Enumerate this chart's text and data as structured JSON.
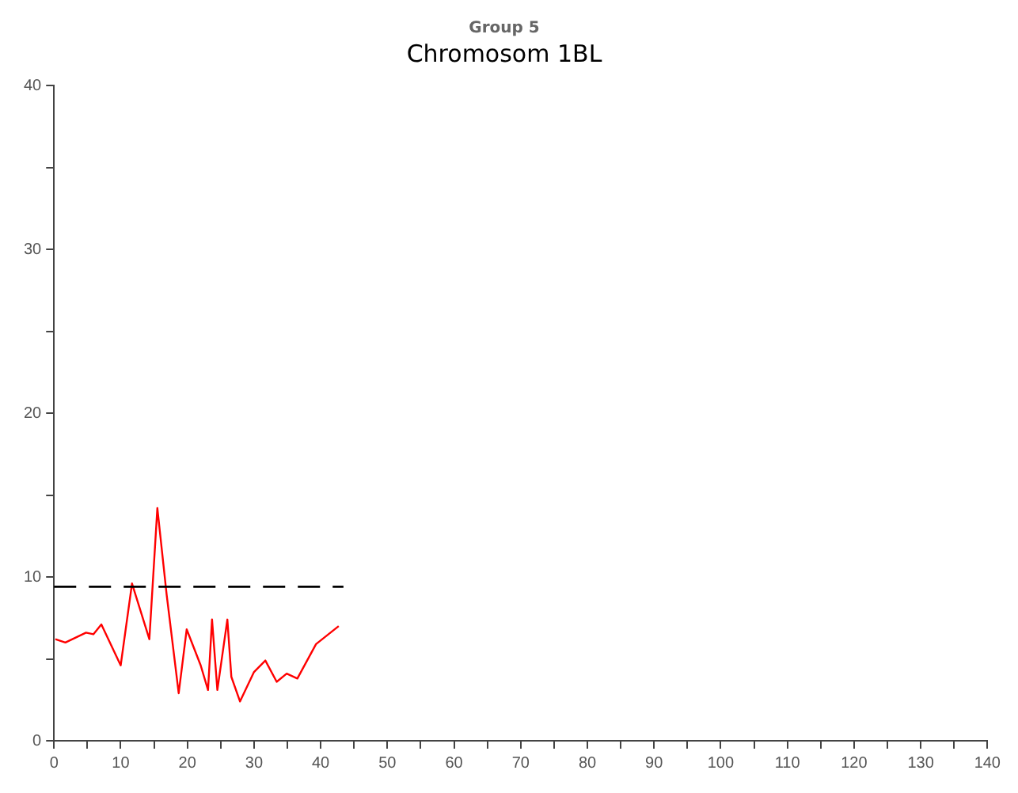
{
  "chart_data": {
    "type": "line",
    "title": "Group 5",
    "subtitle": "Chromosom 1BL",
    "x": [
      0.2,
      1.7,
      4.8,
      5.9,
      7.1,
      10,
      11.7,
      14.3,
      15.5,
      16.9,
      18.7,
      19.9,
      22,
      23.1,
      23.7,
      24.5,
      26,
      26.6,
      27.9,
      30,
      31.7,
      33.4,
      34.9,
      36.5,
      39.3,
      42.7
    ],
    "series": [
      {
        "color": "#ff0000",
        "values": [
          6.2,
          6.0,
          6.6,
          6.5,
          7.1,
          4.6,
          9.6,
          6.2,
          14.2,
          8.9,
          2.9,
          6.8,
          4.6,
          3.1,
          7.4,
          3.1,
          7.4,
          3.9,
          2.4,
          4.2,
          4.9,
          3.6,
          4.1,
          3.8,
          5.9,
          7.0
        ]
      }
    ],
    "ref_lines": [
      {
        "axis": "y",
        "value": 9.4,
        "color": "#000000",
        "line_style": "dashed"
      }
    ],
    "xlim": [
      0,
      140
    ],
    "xticks": [
      0,
      {
        "value": 5,
        "label": null
      },
      10,
      {
        "value": 15,
        "label": null
      },
      20,
      {
        "value": 25,
        "label": null
      },
      30,
      {
        "value": 35,
        "label": null
      },
      40,
      {
        "value": 45,
        "label": null
      },
      50,
      {
        "value": 55,
        "label": null
      },
      60,
      {
        "value": 65,
        "label": null
      },
      70,
      {
        "value": 75,
        "label": null
      },
      80,
      {
        "value": 85,
        "label": null
      },
      90,
      {
        "value": 95,
        "label": null
      },
      100,
      {
        "value": 105,
        "label": null
      },
      110,
      {
        "value": 115,
        "label": null
      },
      120,
      {
        "value": 125,
        "label": null
      },
      130,
      {
        "value": 135,
        "label": null
      },
      140
    ],
    "ylim": [
      0,
      40
    ],
    "yticks": [
      0,
      {
        "value": 5,
        "label": null
      },
      10,
      {
        "value": 15,
        "label": null
      },
      20,
      {
        "value": 25,
        "label": null
      },
      30,
      {
        "value": 35,
        "label": null
      },
      40
    ],
    "grid": false,
    "legend": false,
    "marker": "none",
    "line_style": "solid"
  }
}
